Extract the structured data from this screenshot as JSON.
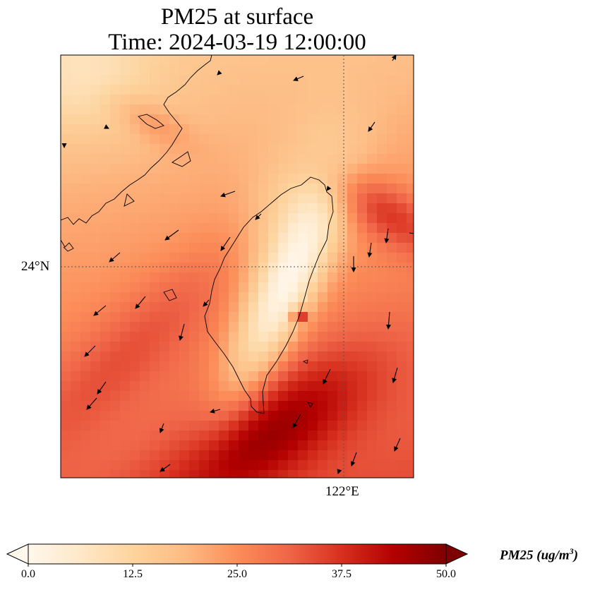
{
  "title": {
    "line1": "PM25 at surface",
    "line2": "Time: 2024-03-19 12:00:00"
  },
  "map": {
    "projection": "PlateCarree",
    "lon_range": [
      119.0,
      122.75
    ],
    "lat_range": [
      21.8,
      26.3
    ],
    "gridlines": {
      "lat": [
        24
      ],
      "lon": [
        122
      ],
      "style": "dotted"
    },
    "lat_tick_label": "24°N",
    "lon_tick_label": "122°E",
    "field": "PM25",
    "wind_vectors": "black arrows, mostly from the northeast"
  },
  "colorbar": {
    "colormap": "OrRd",
    "min": 0.0,
    "max": 50.0,
    "extend": "both",
    "ticks": [
      "0.0",
      "12.5",
      "25.0",
      "37.5",
      "50.0"
    ],
    "label": "PM25 (ug/m3)",
    "label_main": "PM25 (ug/m",
    "label_sup": "3",
    "label_end": ")"
  }
}
